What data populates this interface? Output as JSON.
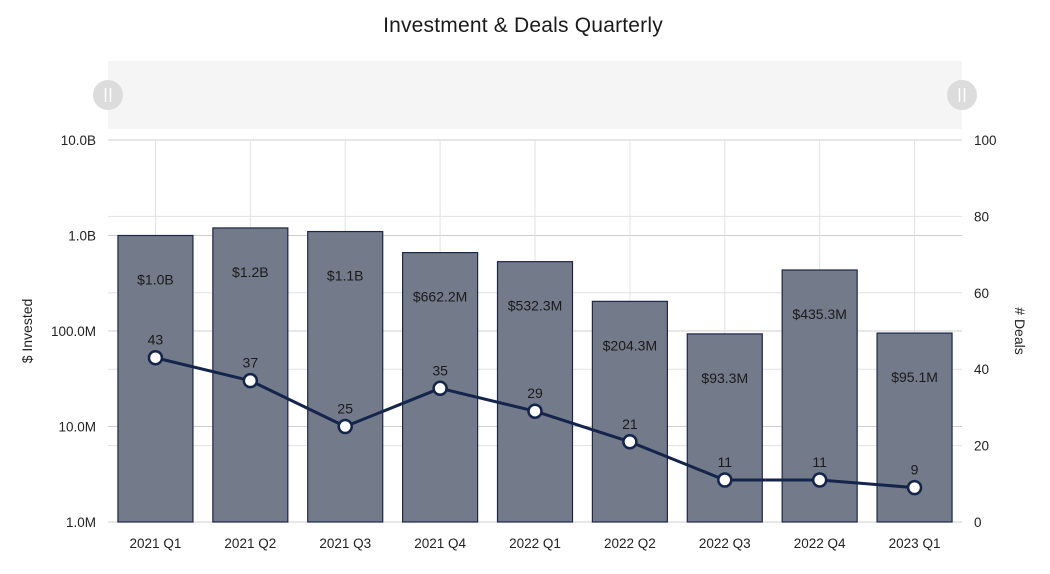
{
  "chart_data": {
    "type": "bar",
    "title": "Investment & Deals Quarterly",
    "categories": [
      "2021 Q1",
      "2021 Q2",
      "2021 Q3",
      "2021 Q4",
      "2022 Q1",
      "2022 Q2",
      "2022 Q3",
      "2022 Q4",
      "2023 Q1"
    ],
    "y_left": {
      "label": "$ Invested",
      "scale": "log",
      "range": [
        1000000,
        10000000000
      ],
      "ticks": [
        {
          "value": 1000000,
          "label": "1.0M"
        },
        {
          "value": 10000000,
          "label": "10.0M"
        },
        {
          "value": 100000000,
          "label": "100.0M"
        },
        {
          "value": 1000000000,
          "label": "1.0B"
        },
        {
          "value": 10000000000,
          "label": "10.0B"
        }
      ]
    },
    "y_right": {
      "label": "# Deals",
      "scale": "linear",
      "range": [
        0,
        100
      ],
      "ticks": [
        0,
        20,
        40,
        60,
        80,
        100
      ]
    },
    "series": [
      {
        "type": "bar",
        "axis": "left",
        "values": [
          1000000000,
          1200000000,
          1100000000,
          662200000,
          532300000,
          204300000,
          93300000,
          435300000,
          95100000
        ],
        "labels": [
          "$1.0B",
          "$1.2B",
          "$1.1B",
          "$662.2M",
          "$532.3M",
          "$204.3M",
          "$93.3M",
          "$435.3M",
          "$95.1M"
        ],
        "color": "#737a8a",
        "stroke": "#1b2747"
      },
      {
        "type": "line",
        "axis": "right",
        "values": [
          43,
          37,
          25,
          35,
          29,
          21,
          11,
          11,
          9
        ],
        "color": "#15244a"
      }
    ],
    "grid": true,
    "range_selector": {
      "color": "#f5f5f5",
      "handle_color": "#dcdcdc"
    }
  }
}
